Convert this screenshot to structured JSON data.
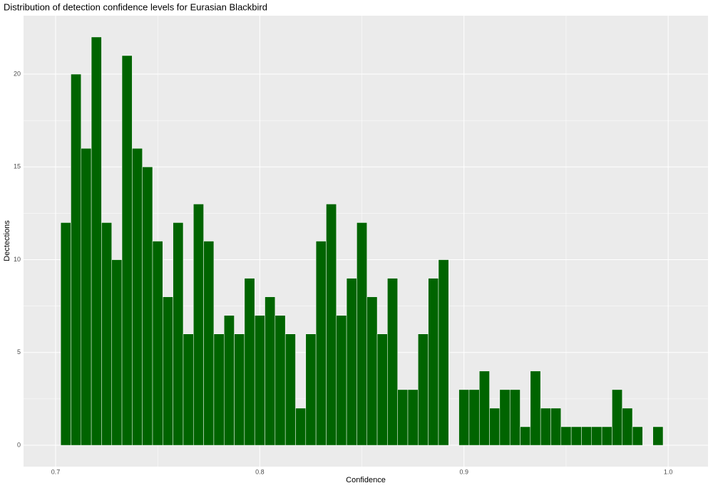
{
  "chart_data": {
    "type": "histogram",
    "title": "Distribution of detection confidence levels for Eurasian Blackbird",
    "x_label": "Confidence",
    "y_label": "Dectections",
    "bins": [
      0.7025,
      0.7075,
      0.7125,
      0.7175,
      0.7225,
      0.7275,
      0.7325,
      0.7375,
      0.7425,
      0.7475,
      0.7525,
      0.7575,
      0.7625,
      0.7675,
      0.7725,
      0.7775,
      0.7825,
      0.7875,
      0.7925,
      0.7975,
      0.8025,
      0.8075,
      0.8125,
      0.8175,
      0.8225,
      0.8275,
      0.8325,
      0.8375,
      0.8425,
      0.8475,
      0.8525,
      0.8575,
      0.8625,
      0.8675,
      0.8725,
      0.8775,
      0.8825,
      0.8875,
      0.8925,
      0.8975,
      0.9025,
      0.9075,
      0.9125,
      0.9175,
      0.9225,
      0.9275,
      0.9325,
      0.9375,
      0.9425,
      0.9475,
      0.9525,
      0.9575,
      0.9625,
      0.9675,
      0.9725,
      0.9775,
      0.9825,
      0.9875,
      0.9925,
      0.9975
    ],
    "values": [
      12,
      20,
      16,
      22,
      12,
      10,
      21,
      16,
      15,
      11,
      8,
      12,
      6,
      13,
      11,
      6,
      7,
      6,
      9,
      7,
      8,
      7,
      6,
      2,
      6,
      11,
      13,
      7,
      9,
      12,
      8,
      6,
      9,
      3,
      3,
      6,
      9,
      10,
      0,
      3,
      3,
      4,
      2,
      3,
      3,
      1,
      4,
      2,
      2,
      1,
      1,
      1,
      1,
      1,
      3,
      2,
      1,
      0,
      1
    ],
    "color": "#006400",
    "xlim": [
      0.6843,
      1.0195
    ],
    "xticks": [
      0.7,
      0.8,
      0.9,
      {
        "value": 1,
        "label": "1.0"
      }
    ],
    "ylim": [
      -1.15,
      23.15
    ],
    "yticks": [
      0,
      5,
      10,
      15,
      20
    ],
    "grid": true
  }
}
